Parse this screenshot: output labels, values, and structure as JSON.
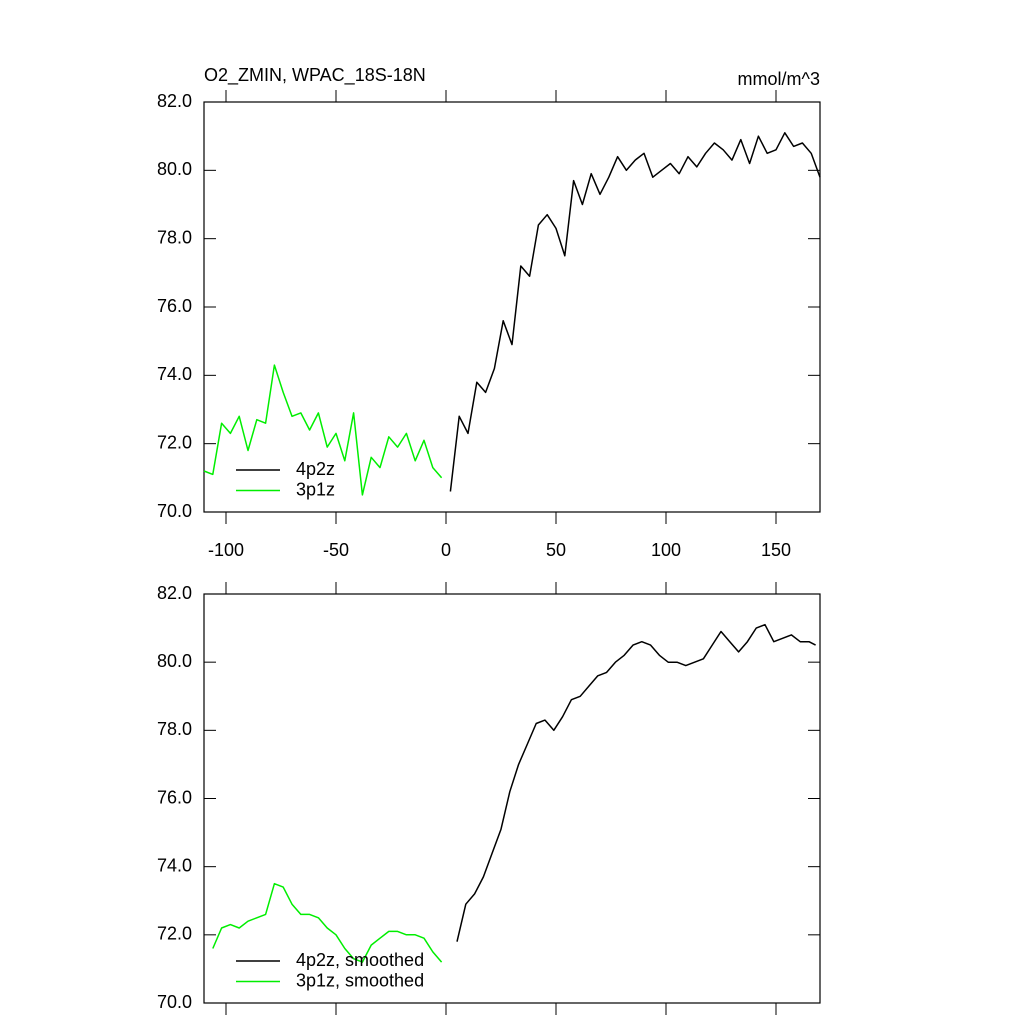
{
  "chart_data": [
    {
      "type": "line",
      "title": "O2_ZMIN, WPAC_18S-18N",
      "units": "mmol/m^3",
      "xlim": [
        -110,
        170
      ],
      "ylim": [
        70,
        82
      ],
      "xticks": [
        -100,
        -50,
        0,
        50,
        100,
        150
      ],
      "xtick_labels": true,
      "yticks": [
        {
          "value": 70,
          "label": "70.0"
        },
        {
          "value": 72,
          "label": "72.0"
        },
        {
          "value": 74,
          "label": "74.0"
        },
        {
          "value": 76,
          "label": "76.0"
        },
        {
          "value": 78,
          "label": "78.0"
        },
        {
          "value": 80,
          "label": "80.0"
        },
        {
          "value": 82,
          "label": "82.0"
        }
      ],
      "legend": "lower left",
      "series": [
        {
          "name": "4p2z",
          "color": "#000000",
          "x": [
            2,
            6,
            10,
            14,
            18,
            22,
            26,
            30,
            34,
            38,
            42,
            46,
            50,
            54,
            58,
            62,
            66,
            70,
            74,
            78,
            82,
            86,
            90,
            94,
            98,
            102,
            106,
            110,
            114,
            118,
            122,
            126,
            130,
            134,
            138,
            142,
            146,
            150,
            154,
            158,
            162,
            166,
            170
          ],
          "values": [
            70.6,
            72.8,
            72.3,
            73.8,
            73.5,
            74.2,
            75.6,
            74.9,
            77.2,
            76.9,
            78.4,
            78.7,
            78.3,
            77.5,
            79.7,
            79.0,
            79.9,
            79.3,
            79.8,
            80.4,
            80.0,
            80.3,
            80.5,
            79.8,
            80.0,
            80.2,
            79.9,
            80.4,
            80.1,
            80.5,
            80.8,
            80.6,
            80.3,
            80.9,
            80.2,
            81.0,
            80.5,
            80.6,
            81.1,
            80.7,
            80.8,
            80.5,
            79.8
          ]
        },
        {
          "name": "3p1z",
          "color": "#00ee00",
          "x": [
            -110,
            -106,
            -102,
            -98,
            -94,
            -90,
            -86,
            -82,
            -78,
            -74,
            -70,
            -66,
            -62,
            -58,
            -54,
            -50,
            -46,
            -42,
            -38,
            -34,
            -30,
            -26,
            -22,
            -18,
            -14,
            -10,
            -6,
            -2
          ],
          "values": [
            71.2,
            71.1,
            72.6,
            72.3,
            72.8,
            71.8,
            72.7,
            72.6,
            74.3,
            73.5,
            72.8,
            72.9,
            72.4,
            72.9,
            71.9,
            72.3,
            71.5,
            72.9,
            70.5,
            71.6,
            71.3,
            72.2,
            71.9,
            72.3,
            71.5,
            72.1,
            71.3,
            71.0
          ]
        }
      ]
    },
    {
      "type": "line",
      "xlim": [
        -110,
        170
      ],
      "ylim": [
        70,
        82
      ],
      "xticks": [
        -100,
        -50,
        0,
        50,
        100,
        150
      ],
      "xtick_labels": false,
      "yticks": [
        {
          "value": 70,
          "label": "70.0"
        },
        {
          "value": 72,
          "label": "72.0"
        },
        {
          "value": 74,
          "label": "74.0"
        },
        {
          "value": 76,
          "label": "76.0"
        },
        {
          "value": 78,
          "label": "78.0"
        },
        {
          "value": 80,
          "label": "80.0"
        },
        {
          "value": 82,
          "label": "82.0"
        }
      ],
      "legend": "lower left",
      "series": [
        {
          "name": "4p2z, smoothed",
          "color": "#000000",
          "x": [
            5,
            9,
            13,
            17,
            21,
            25,
            29,
            33,
            37,
            41,
            45,
            49,
            53,
            57,
            61,
            65,
            69,
            73,
            77,
            81,
            85,
            89,
            93,
            97,
            101,
            105,
            109,
            113,
            117,
            121,
            125,
            129,
            133,
            137,
            141,
            145,
            149,
            153,
            157,
            161,
            165,
            168
          ],
          "values": [
            71.8,
            72.9,
            73.2,
            73.7,
            74.4,
            75.1,
            76.2,
            77.0,
            77.6,
            78.2,
            78.3,
            78.0,
            78.4,
            78.9,
            79.0,
            79.3,
            79.6,
            79.7,
            80.0,
            80.2,
            80.5,
            80.6,
            80.5,
            80.2,
            80.0,
            80.0,
            79.9,
            80.0,
            80.1,
            80.5,
            80.9,
            80.6,
            80.3,
            80.6,
            81.0,
            81.1,
            80.6,
            80.7,
            80.8,
            80.6,
            80.6,
            80.5
          ]
        },
        {
          "name": "3p1z, smoothed",
          "color": "#00ee00",
          "x": [
            -106,
            -102,
            -98,
            -94,
            -90,
            -86,
            -82,
            -78,
            -74,
            -70,
            -66,
            -62,
            -58,
            -54,
            -50,
            -46,
            -42,
            -38,
            -34,
            -30,
            -26,
            -22,
            -18,
            -14,
            -10,
            -6,
            -2
          ],
          "values": [
            71.6,
            72.2,
            72.3,
            72.2,
            72.4,
            72.5,
            72.6,
            73.5,
            73.4,
            72.9,
            72.6,
            72.6,
            72.5,
            72.2,
            72.0,
            71.6,
            71.3,
            71.2,
            71.7,
            71.9,
            72.1,
            72.1,
            72.0,
            72.0,
            71.9,
            71.5,
            71.2
          ]
        }
      ]
    }
  ]
}
